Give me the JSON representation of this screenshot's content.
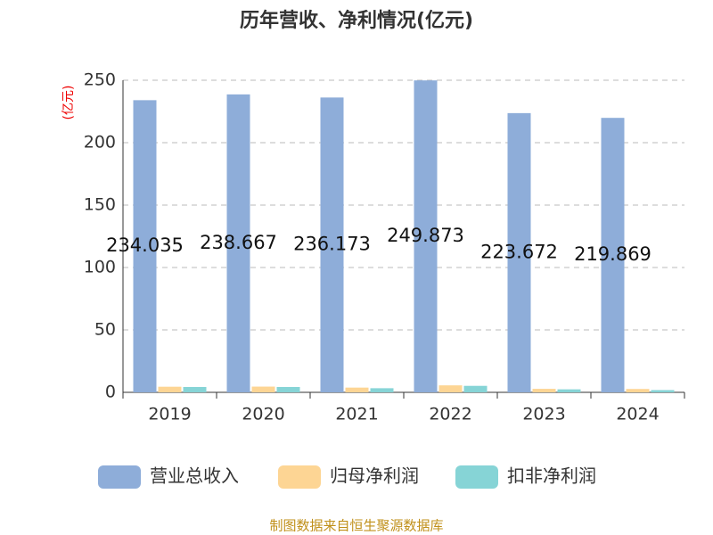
{
  "chart_data": {
    "type": "bar",
    "title": "历年营收、净利情况(亿元)",
    "y_label": "(亿元)",
    "categories": [
      "2019",
      "2020",
      "2021",
      "2022",
      "2023",
      "2024"
    ],
    "series": [
      {
        "name": "营业总收入",
        "color": "#8eadd9",
        "values": [
          234.035,
          238.667,
          236.173,
          249.873,
          223.672,
          219.869
        ]
      },
      {
        "name": "归母净利润",
        "color": "#fdd594",
        "values": [
          4.5,
          4.6,
          3.8,
          5.6,
          2.8,
          2.7
        ]
      },
      {
        "name": "扣非净利润",
        "color": "#86d4d6",
        "values": [
          4.3,
          4.3,
          3.3,
          5.2,
          2.4,
          1.8
        ]
      }
    ],
    "ylim": [
      0,
      250
    ],
    "yticks": [
      0,
      50,
      100,
      150,
      200,
      250
    ],
    "grid": true,
    "source": "制图数据来自恒生聚源数据库"
  }
}
